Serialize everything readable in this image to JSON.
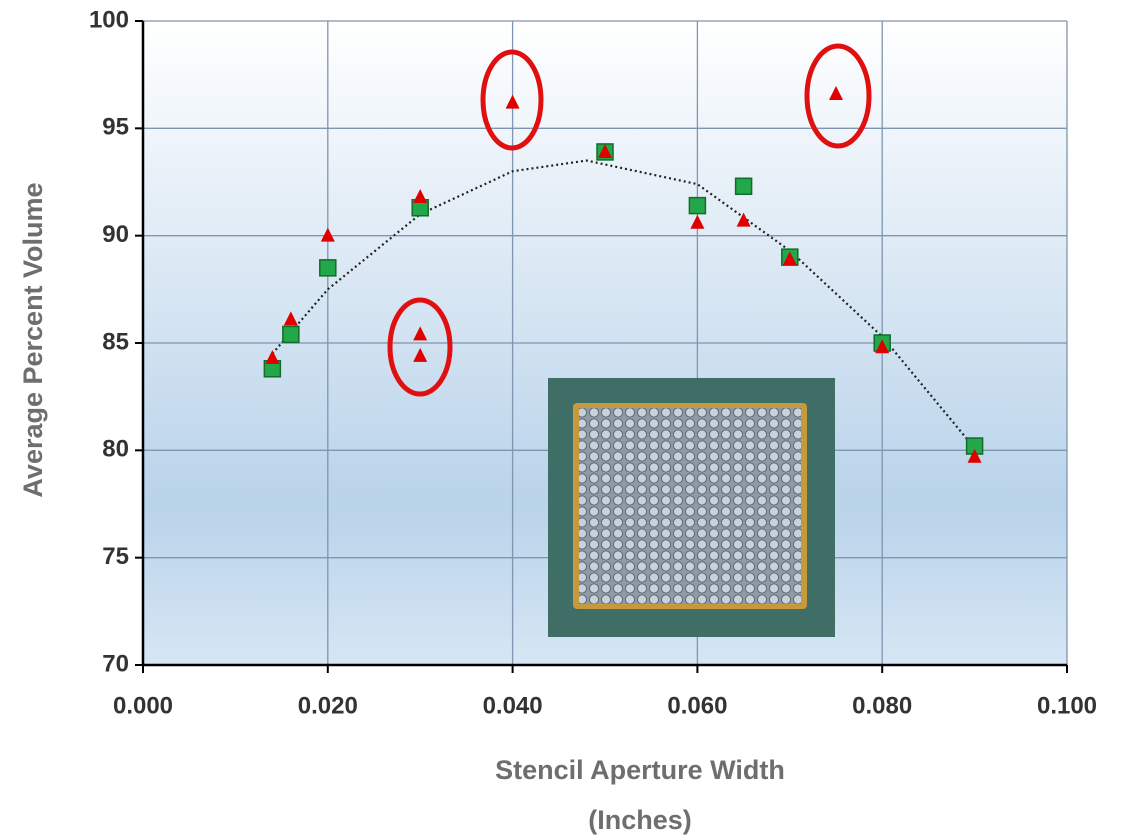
{
  "chart_data": {
    "type": "scatter",
    "xlabel": [
      "Stencil Aperture Width",
      "(Inches)"
    ],
    "ylabel": "Average Percent Volume",
    "xlim": [
      0,
      0.1
    ],
    "ylim": [
      70,
      100
    ],
    "xticks": [
      {
        "value": 0,
        "label": "0.000"
      },
      {
        "value": 0.02,
        "label": "0.020"
      },
      {
        "value": 0.04,
        "label": "0.040"
      },
      {
        "value": 0.06,
        "label": "0.060"
      },
      {
        "value": 0.08,
        "label": "0.080"
      },
      {
        "value": 0.1,
        "label": "0.100"
      }
    ],
    "yticks": [
      70,
      75,
      80,
      85,
      90,
      95,
      100
    ],
    "grid": true,
    "series": [
      {
        "marker": "square",
        "color": "#22a84a",
        "x": [
          0.014,
          0.016,
          0.02,
          0.03,
          0.05,
          0.06,
          0.065,
          0.07,
          0.08,
          0.09
        ],
        "values": [
          83.8,
          85.4,
          88.5,
          91.3,
          93.9,
          91.4,
          92.3,
          89.0,
          85.0,
          80.2
        ]
      },
      {
        "marker": "triangle",
        "color": "#e00000",
        "x": [
          0.014,
          0.016,
          0.02,
          0.03,
          0.03,
          0.03,
          0.04,
          0.05,
          0.06,
          0.065,
          0.07,
          0.075,
          0.08,
          0.09
        ],
        "values": [
          84.3,
          86.1,
          90.0,
          91.8,
          85.4,
          84.4,
          96.2,
          93.9,
          90.6,
          90.7,
          88.9,
          96.6,
          84.8,
          79.7
        ]
      }
    ],
    "trendline": {
      "color": "#222222",
      "x": [
        0.014,
        0.02,
        0.03,
        0.04,
        0.048,
        0.06,
        0.07,
        0.08,
        0.09
      ],
      "values": [
        84.5,
        87.5,
        91.0,
        93.0,
        93.5,
        92.4,
        89.3,
        85.3,
        80.1
      ]
    }
  }
}
